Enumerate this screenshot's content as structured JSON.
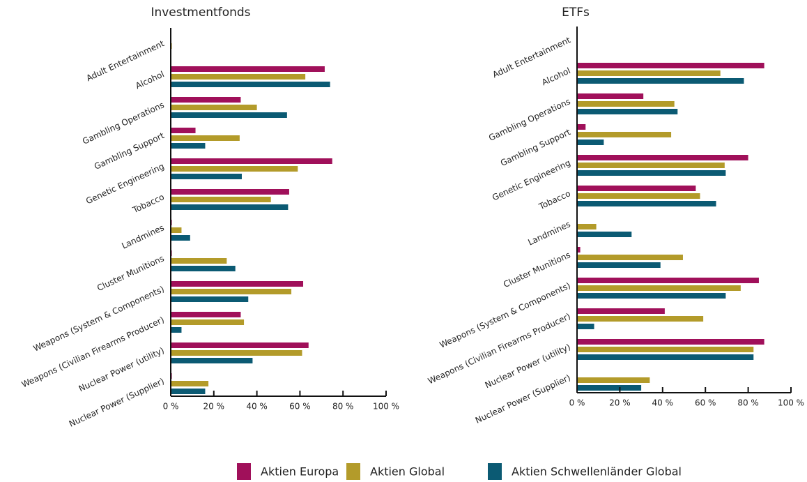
{
  "chart_data": [
    {
      "type": "bar",
      "orientation": "horizontal",
      "title": "Investmentfonds",
      "categories": [
        "Adult Entertainment",
        "Alcohol",
        "Gambling Operations",
        "Gambling Support",
        "Genetic Engineering",
        "Tobacco",
        "Landmines",
        "Cluster Munitions",
        "Weapons (System & Components)",
        "Weapons (Civilian Firearms Producer)",
        "Nuclear Power (utility)",
        "Nuclear Power (Supplier)"
      ],
      "series": [
        {
          "name": "Aktien Europa",
          "color": "#a0105a",
          "values": [
            0,
            71.5,
            32.5,
            11.5,
            75,
            55,
            0.5,
            0.5,
            61.5,
            32.5,
            64,
            0.5
          ]
        },
        {
          "name": "Aktien Global",
          "color": "#b39b2a",
          "values": [
            0.5,
            62.5,
            40,
            32,
            59,
            46.5,
            5,
            26,
            56,
            34,
            61,
            17.5
          ]
        },
        {
          "name": "Aktien Schwellenländer Global",
          "color": "#0b5a73",
          "values": [
            0,
            74,
            54,
            16,
            33,
            54.5,
            9,
            30,
            36,
            5,
            38,
            16
          ]
        }
      ],
      "xlim": [
        0,
        100
      ],
      "xticks": [
        {
          "value": 0,
          "label": "0 %"
        },
        {
          "value": 20,
          "label": "20 %"
        },
        {
          "value": 40,
          "label": "40 %"
        },
        {
          "value": 60,
          "label": "60 %"
        },
        {
          "value": 80,
          "label": "80 %"
        },
        {
          "value": 100,
          "label": "100 %"
        }
      ]
    },
    {
      "type": "bar",
      "orientation": "horizontal",
      "title": "ETFs",
      "categories": [
        "Adult Entertainment",
        "Alcohol",
        "Gambling Operations",
        "Gambling Support",
        "Genetic Engineering",
        "Tobacco",
        "Landmines",
        "Cluster Munitions",
        "Weapons (System & Components)",
        "Weapons (Civilian Firearms Producer)",
        "Nuclear Power (utility)",
        "Nuclear Power (Supplier)"
      ],
      "series": [
        {
          "color": "#a0105a",
          "values": [
            0,
            87.5,
            31,
            4,
            80,
            55.5,
            0,
            1.5,
            85,
            41,
            87.5,
            0
          ]
        },
        {
          "color": "#b39b2a",
          "values": [
            0,
            67,
            45.5,
            44,
            69,
            57.5,
            9,
            49.5,
            76.5,
            59,
            82.5,
            34
          ]
        },
        {
          "color": "#0b5a73",
          "values": [
            0,
            78,
            47,
            12.5,
            69.5,
            65,
            25.5,
            39,
            69.5,
            8,
            82.5,
            30
          ]
        }
      ],
      "xlim": [
        0,
        100
      ],
      "xticks": [
        {
          "value": 0,
          "label": "0 %"
        },
        {
          "value": 20,
          "label": "20 %"
        },
        {
          "value": 40,
          "label": "40 %"
        },
        {
          "value": 60,
          "label": "60 %"
        },
        {
          "value": 80,
          "label": "80 %"
        },
        {
          "value": 100,
          "label": "100 %"
        }
      ]
    }
  ]
}
